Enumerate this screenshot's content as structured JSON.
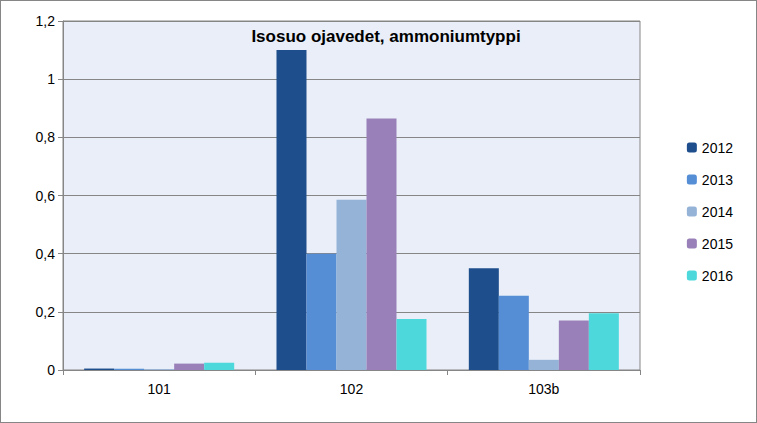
{
  "chart_data": {
    "type": "bar",
    "title": "Isosuo ojavedet, ammoniumtyppi",
    "categories": [
      "101",
      "102",
      "103b"
    ],
    "series": [
      {
        "name": "2012",
        "color": "#1f4e8c",
        "values": [
          0.005,
          1.1,
          0.35
        ]
      },
      {
        "name": "2013",
        "color": "#558ed5",
        "values": [
          0.004,
          0.4,
          0.255
        ]
      },
      {
        "name": "2014",
        "color": "#95b3d7",
        "values": [
          0.003,
          0.585,
          0.035
        ]
      },
      {
        "name": "2015",
        "color": "#9980b8",
        "values": [
          0.022,
          0.865,
          0.17
        ]
      },
      {
        "name": "2016",
        "color": "#4dd9dc",
        "values": [
          0.025,
          0.175,
          0.195
        ]
      }
    ],
    "ylim": [
      0,
      1.2
    ],
    "yticks": [
      0,
      {
        "value": 0.2,
        "label": "0,2"
      },
      {
        "value": 0.4,
        "label": "0,4"
      },
      {
        "value": 0.6,
        "label": "0,6"
      },
      {
        "value": 0.8,
        "label": "0,8"
      },
      1,
      {
        "value": 1.2,
        "label": "1,2"
      }
    ],
    "grid": true,
    "legend": "right"
  }
}
